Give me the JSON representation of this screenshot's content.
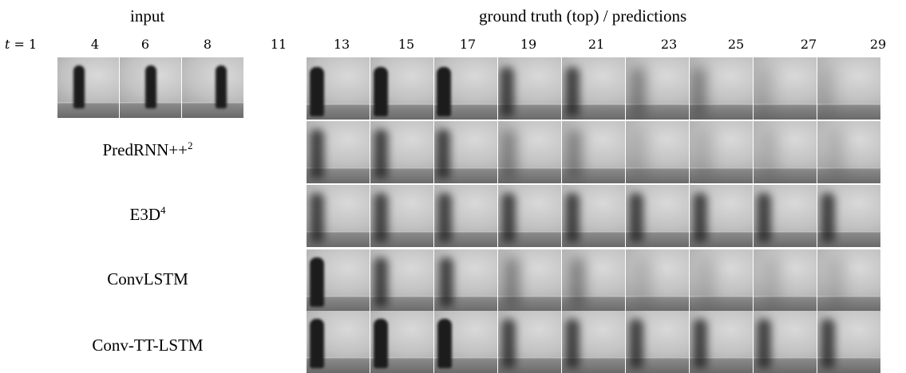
{
  "header": {
    "input_label": "input",
    "output_label": "ground truth (top) / predictions"
  },
  "time_axis": {
    "t_prefix": "t = ",
    "ticks": [
      "1",
      "4",
      "6",
      "8",
      "11",
      "13",
      "15",
      "17",
      "19",
      "21",
      "23",
      "25",
      "27",
      "29"
    ]
  },
  "rows": [
    {
      "label": "",
      "sup": "",
      "kind": "ground-truth"
    },
    {
      "label": "PredRNN++",
      "sup": "2",
      "kind": "prediction"
    },
    {
      "label": "E3D",
      "sup": "4",
      "kind": "prediction"
    },
    {
      "label": "ConvLSTM",
      "sup": "",
      "kind": "prediction"
    },
    {
      "label": "Conv-TT-LSTM",
      "sup": "",
      "kind": "prediction"
    }
  ]
}
